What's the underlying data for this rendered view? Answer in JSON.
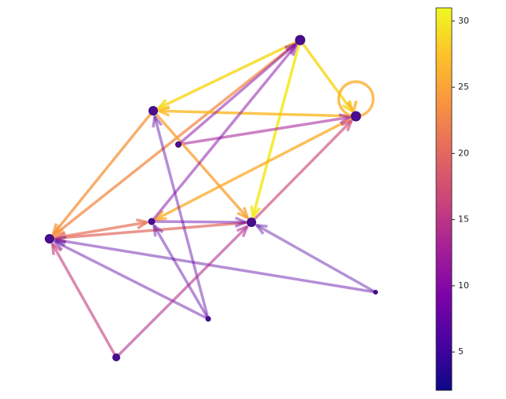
{
  "chart_data": {
    "type": "network",
    "edges": [
      {
        "source": 0,
        "target": 2,
        "value": 29
      },
      {
        "source": 0,
        "target": 1,
        "value": 29
      },
      {
        "source": 0,
        "target": 5,
        "value": 30
      },
      {
        "source": 0,
        "target": 6,
        "value": 23
      },
      {
        "source": 1,
        "target": 1,
        "value": 26
      },
      {
        "source": 1,
        "target": 2,
        "value": 27
      },
      {
        "source": 1,
        "target": 4,
        "value": 26
      },
      {
        "source": 3,
        "target": 1,
        "value": 13
      },
      {
        "source": 2,
        "target": 6,
        "value": 24
      },
      {
        "source": 2,
        "target": 5,
        "value": 25
      },
      {
        "source": 3,
        "target": 0,
        "value": 10
      },
      {
        "source": 4,
        "target": 0,
        "value": 10
      },
      {
        "source": 5,
        "target": 1,
        "value": 17
      },
      {
        "source": 6,
        "target": 4,
        "value": 21
      },
      {
        "source": 5,
        "target": 6,
        "value": 20
      },
      {
        "source": 4,
        "target": 5,
        "value": 8
      },
      {
        "source": 7,
        "target": 5,
        "value": 6
      },
      {
        "source": 7,
        "target": 6,
        "value": 7
      },
      {
        "source": 8,
        "target": 2,
        "value": 7
      },
      {
        "source": 8,
        "target": 4,
        "value": 7
      },
      {
        "source": 8,
        "target": 6,
        "value": 7
      },
      {
        "source": 9,
        "target": 6,
        "value": 16
      },
      {
        "source": 9,
        "target": 5,
        "value": 14
      }
    ],
    "clim": [
      2.1,
      31
    ],
    "cticks": [
      5,
      10,
      15,
      20,
      25,
      30
    ]
  }
}
